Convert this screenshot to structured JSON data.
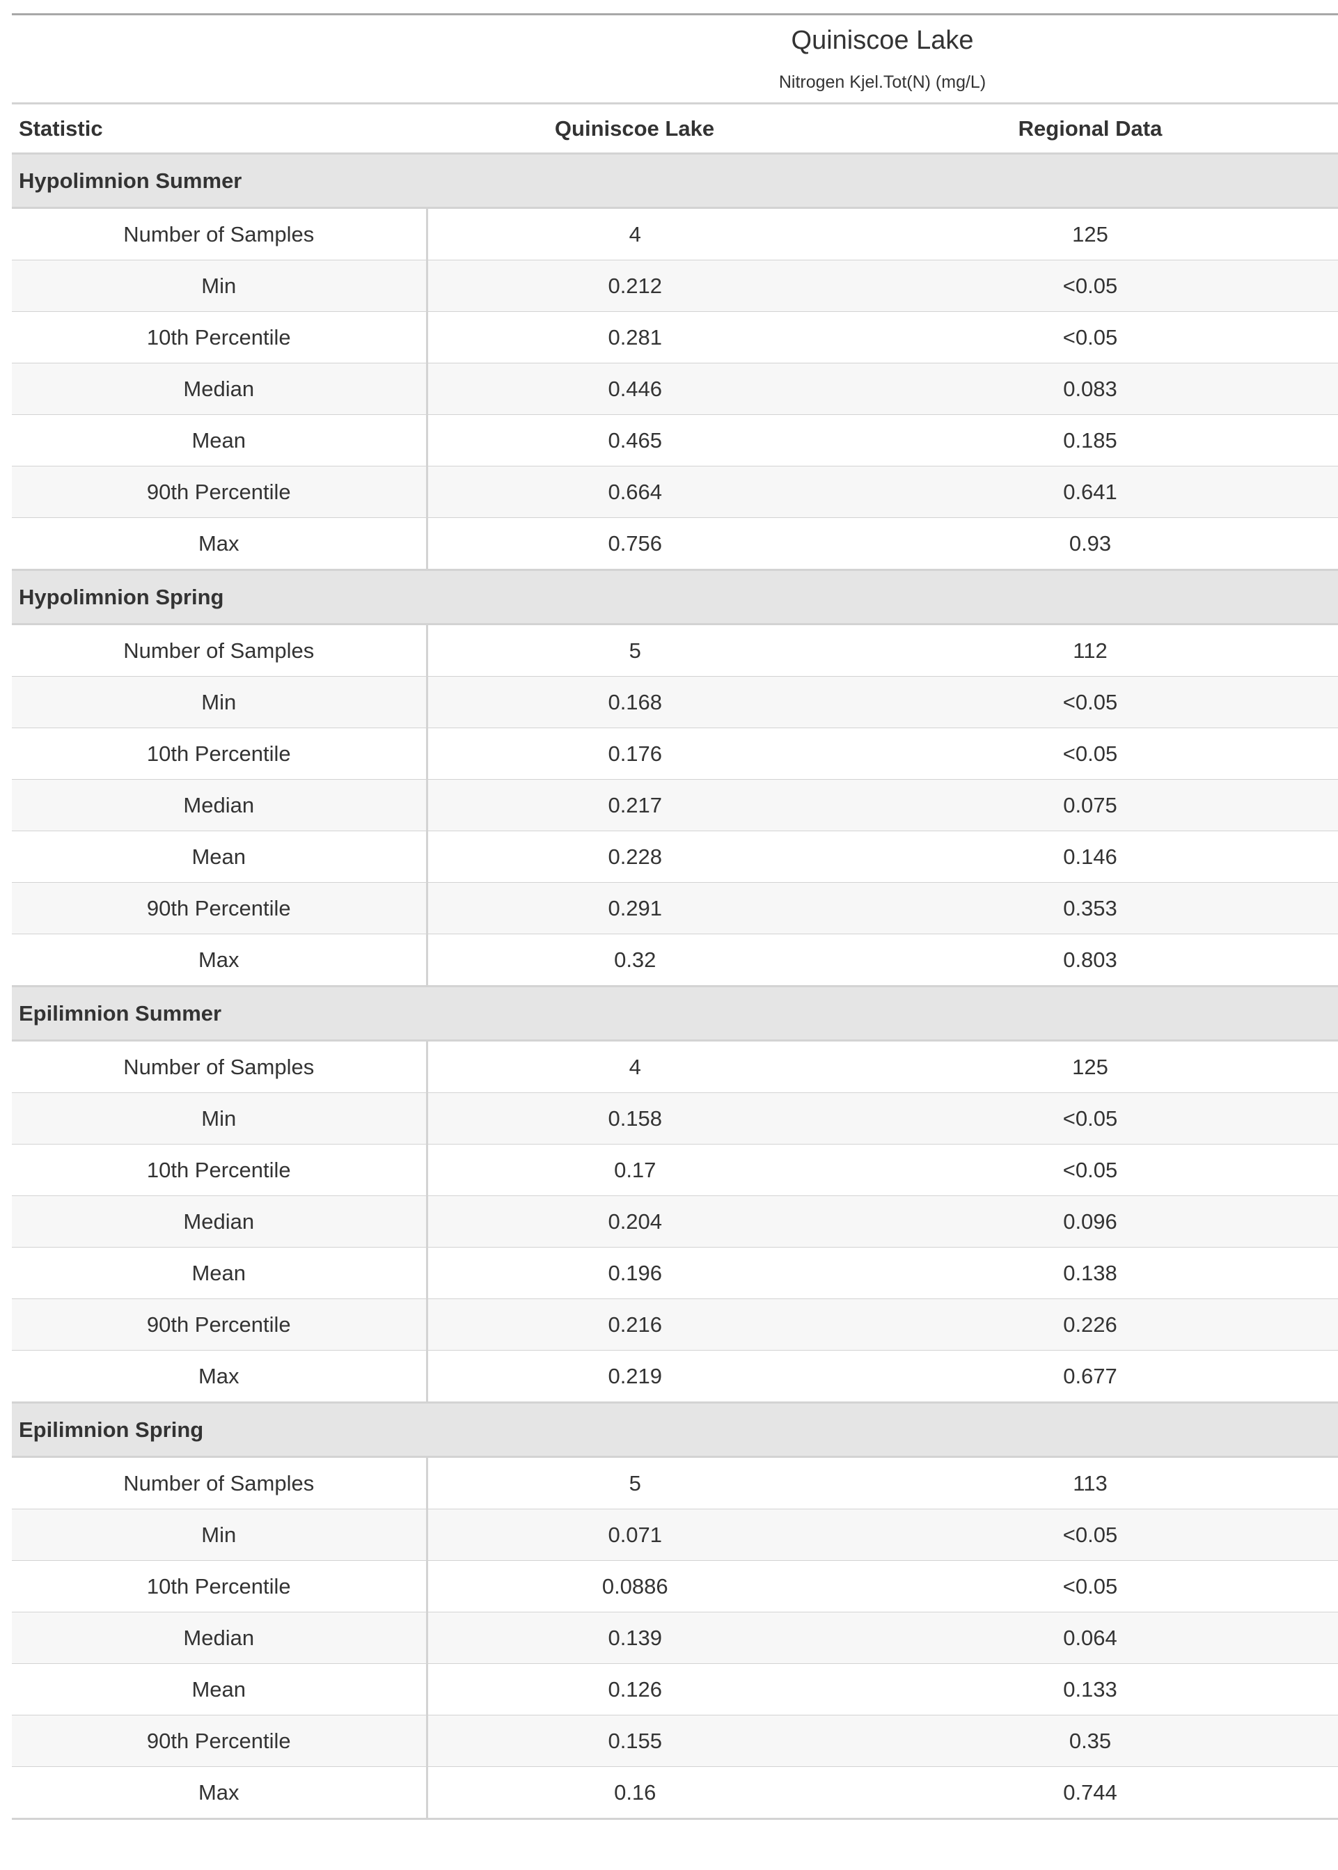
{
  "table": {
    "title": "Quiniscoe Lake",
    "subtitle": "Nitrogen Kjel.Tot(N) (mg/L)",
    "columns": [
      "Statistic",
      "Quiniscoe Lake",
      "Regional Data"
    ],
    "groups": [
      {
        "name": "Hypolimnion Summer",
        "rows": [
          [
            "Number of Samples",
            "4",
            "125"
          ],
          [
            "Min",
            "0.212",
            "<0.05"
          ],
          [
            "10th Percentile",
            "0.281",
            "<0.05"
          ],
          [
            "Median",
            "0.446",
            "0.083"
          ],
          [
            "Mean",
            "0.465",
            "0.185"
          ],
          [
            "90th Percentile",
            "0.664",
            "0.641"
          ],
          [
            "Max",
            "0.756",
            "0.93"
          ]
        ]
      },
      {
        "name": "Hypolimnion Spring",
        "rows": [
          [
            "Number of Samples",
            "5",
            "112"
          ],
          [
            "Min",
            "0.168",
            "<0.05"
          ],
          [
            "10th Percentile",
            "0.176",
            "<0.05"
          ],
          [
            "Median",
            "0.217",
            "0.075"
          ],
          [
            "Mean",
            "0.228",
            "0.146"
          ],
          [
            "90th Percentile",
            "0.291",
            "0.353"
          ],
          [
            "Max",
            "0.32",
            "0.803"
          ]
        ]
      },
      {
        "name": "Epilimnion Summer",
        "rows": [
          [
            "Number of Samples",
            "4",
            "125"
          ],
          [
            "Min",
            "0.158",
            "<0.05"
          ],
          [
            "10th Percentile",
            "0.17",
            "<0.05"
          ],
          [
            "Median",
            "0.204",
            "0.096"
          ],
          [
            "Mean",
            "0.196",
            "0.138"
          ],
          [
            "90th Percentile",
            "0.216",
            "0.226"
          ],
          [
            "Max",
            "0.219",
            "0.677"
          ]
        ]
      },
      {
        "name": "Epilimnion Spring",
        "rows": [
          [
            "Number of Samples",
            "5",
            "113"
          ],
          [
            "Min",
            "0.071",
            "<0.05"
          ],
          [
            "10th Percentile",
            "0.0886",
            "<0.05"
          ],
          [
            "Median",
            "0.139",
            "0.064"
          ],
          [
            "Mean",
            "0.126",
            "0.133"
          ],
          [
            "90th Percentile",
            "0.155",
            "0.35"
          ],
          [
            "Max",
            "0.16",
            "0.744"
          ]
        ]
      }
    ]
  }
}
